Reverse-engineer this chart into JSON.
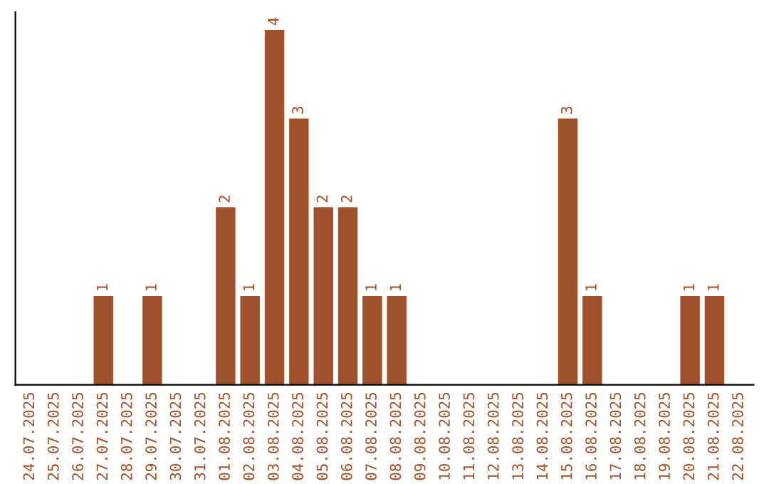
{
  "chart_data": {
    "type": "bar",
    "categories": [
      "24.07.2025",
      "25.07.2025",
      "26.07.2025",
      "27.07.2025",
      "28.07.2025",
      "29.07.2025",
      "30.07.2025",
      "31.07.2025",
      "01.08.2025",
      "02.08.2025",
      "03.08.2025",
      "04.08.2025",
      "05.08.2025",
      "06.08.2025",
      "07.08.2025",
      "08.08.2025",
      "09.08.2025",
      "10.08.2025",
      "11.08.2025",
      "12.08.2025",
      "13.08.2025",
      "14.08.2025",
      "15.08.2025",
      "16.08.2025",
      "17.08.2025",
      "18.08.2025",
      "19.08.2025",
      "20.08.2025",
      "21.08.2025",
      "22.08.2025"
    ],
    "values": [
      0,
      0,
      0,
      1,
      0,
      1,
      0,
      0,
      2,
      1,
      4,
      3,
      2,
      2,
      1,
      1,
      0,
      0,
      0,
      0,
      0,
      0,
      3,
      1,
      0,
      0,
      0,
      1,
      1,
      0
    ],
    "value_labels": [
      null,
      null,
      null,
      "1",
      null,
      "1",
      null,
      null,
      "2",
      "1",
      "4",
      "3",
      "2",
      "2",
      "1",
      "1",
      null,
      null,
      null,
      null,
      null,
      null,
      "3",
      "1",
      null,
      null,
      null,
      "1",
      "1",
      null
    ],
    "color": "#a0522d",
    "tick_labels": "x",
    "grid": false,
    "legend": false
  }
}
